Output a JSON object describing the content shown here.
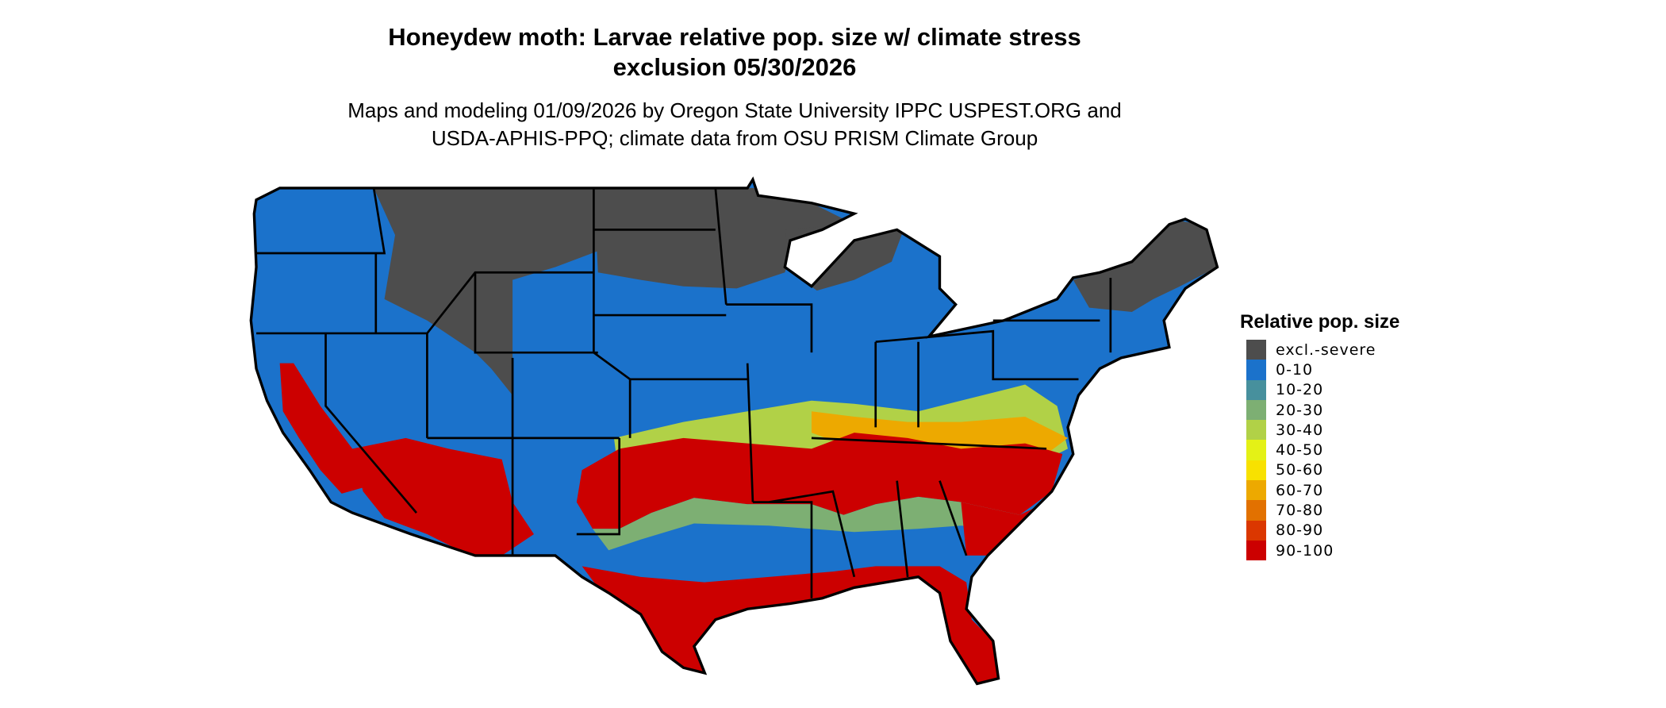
{
  "title": {
    "line1": "Honeydew moth: Larvae relative pop. size w/ climate stress",
    "line2": "exclusion 05/30/2026"
  },
  "subtitle": {
    "line1": "Maps and modeling 01/09/2026 by Oregon State University IPPC USPEST.ORG and",
    "line2": "USDA-APHIS-PPQ; climate data from OSU PRISM Climate Group"
  },
  "legend": {
    "title": "Relative pop. size",
    "items": [
      {
        "label": "excl.-severe",
        "color": "#4d4d4d"
      },
      {
        "label": "0-10",
        "color": "#1b72cb"
      },
      {
        "label": "10-20",
        "color": "#47909d"
      },
      {
        "label": "20-30",
        "color": "#7daf73"
      },
      {
        "label": "30-40",
        "color": "#b1d147"
      },
      {
        "label": "40-50",
        "color": "#e4f116"
      },
      {
        "label": "50-60",
        "color": "#f8e100"
      },
      {
        "label": "60-70",
        "color": "#eda900"
      },
      {
        "label": "70-80",
        "color": "#e27100"
      },
      {
        "label": "80-90",
        "color": "#db3700"
      },
      {
        "label": "90-100",
        "color": "#cc0000"
      }
    ]
  }
}
